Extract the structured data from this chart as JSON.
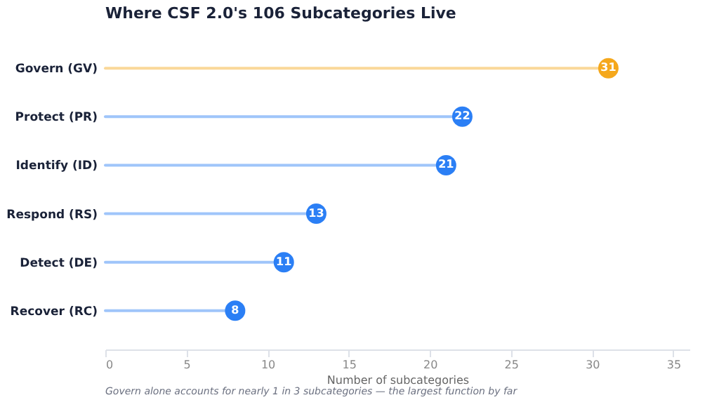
{
  "chart_data": {
    "type": "lollipop",
    "orientation": "horizontal",
    "title": "Where CSF 2.0's 106 Subcategories Live",
    "xlabel": "Number of subcategories",
    "categories": [
      "Govern (GV)",
      "Protect (PR)",
      "Identify (ID)",
      "Respond (RS)",
      "Detect (DE)",
      "Recover (RC)"
    ],
    "values": [
      31,
      22,
      21,
      13,
      11,
      8
    ],
    "colors": [
      "#f5a81c",
      "#2b7ff5",
      "#2b7ff5",
      "#2b7ff5",
      "#2b7ff5",
      "#2b7ff5"
    ],
    "xlim": [
      0,
      36
    ],
    "xticks": [
      0,
      5,
      10,
      15,
      20,
      25,
      30,
      35
    ],
    "data_labels": true,
    "annotations": [
      "Govern alone accounts for nearly 1 in 3 subcategories — the largest function by far"
    ]
  }
}
